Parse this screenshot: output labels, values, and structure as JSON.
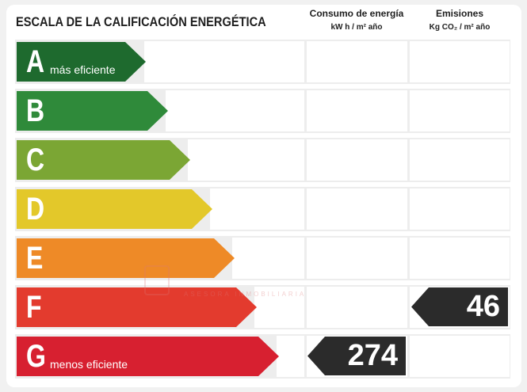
{
  "title": "ESCALA DE LA CALIFICACIÓN ENERGÉTICA",
  "columns": {
    "energy": {
      "line1": "Consumo de energía",
      "line2": "kW h / m² año"
    },
    "emissions": {
      "line1": "Emisiones",
      "line2": "Kg CO₂ / m² año"
    }
  },
  "ratings": [
    {
      "letter": "A",
      "label": "más eficiente",
      "color": "#1e6a2e"
    },
    {
      "letter": "B",
      "label": "",
      "color": "#2f8a3a"
    },
    {
      "letter": "C",
      "label": "",
      "color": "#7ba634"
    },
    {
      "letter": "D",
      "label": "",
      "color": "#e3c82a"
    },
    {
      "letter": "E",
      "label": "",
      "color": "#ee8a27"
    },
    {
      "letter": "F",
      "label": "",
      "color": "#e33b2e"
    },
    {
      "letter": "G",
      "label": "menos eficiente",
      "color": "#d72030"
    }
  ],
  "energy_value": {
    "rating": "G",
    "value": "274"
  },
  "emissions_value": {
    "rating": "F",
    "value": "46"
  },
  "watermark": "ASESORA INMOBILIARIA"
}
